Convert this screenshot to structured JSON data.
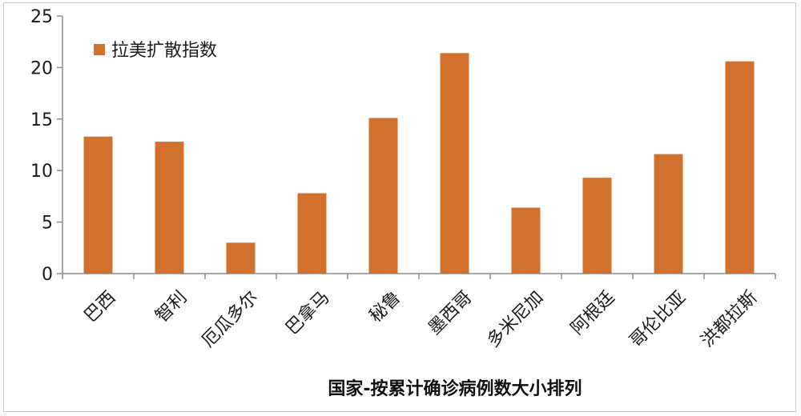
{
  "chart_data": {
    "type": "bar",
    "categories": [
      "巴西",
      "智利",
      "厄瓜多尔",
      "巴拿马",
      "秘鲁",
      "墨西哥",
      "多米尼加",
      "阿根廷",
      "哥伦比亚",
      "洪都拉斯"
    ],
    "series": [
      {
        "name": "拉美扩散指数",
        "values": [
          13.3,
          12.8,
          3.0,
          7.8,
          15.1,
          21.4,
          6.4,
          9.3,
          11.6,
          20.6
        ],
        "color": "#D2702D"
      }
    ],
    "ylim": [
      0,
      25
    ],
    "yticks": [
      0,
      5,
      10,
      15,
      20,
      25
    ],
    "xlabel": "国家-按累计确诊病例数大小排列",
    "ylabel": "",
    "legend_position": "top-left",
    "grid": false
  }
}
